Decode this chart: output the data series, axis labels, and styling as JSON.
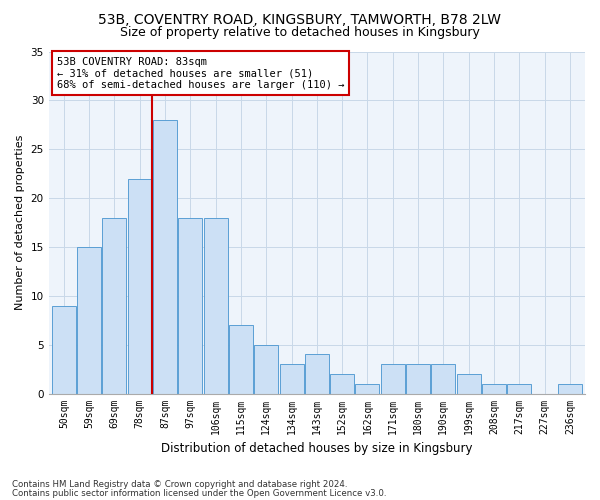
{
  "title1": "53B, COVENTRY ROAD, KINGSBURY, TAMWORTH, B78 2LW",
  "title2": "Size of property relative to detached houses in Kingsbury",
  "xlabel": "Distribution of detached houses by size in Kingsbury",
  "ylabel": "Number of detached properties",
  "categories": [
    "50sqm",
    "59sqm",
    "69sqm",
    "78sqm",
    "87sqm",
    "97sqm",
    "106sqm",
    "115sqm",
    "124sqm",
    "134sqm",
    "143sqm",
    "152sqm",
    "162sqm",
    "171sqm",
    "180sqm",
    "190sqm",
    "199sqm",
    "208sqm",
    "217sqm",
    "227sqm",
    "236sqm"
  ],
  "values": [
    9,
    15,
    18,
    22,
    28,
    18,
    18,
    7,
    5,
    3,
    4,
    2,
    1,
    3,
    3,
    3,
    2,
    1,
    1,
    0,
    1
  ],
  "bar_color": "#cce0f5",
  "bar_edge_color": "#5a9fd4",
  "vline_x": 3.5,
  "vline_color": "#cc0000",
  "annotation_text": "53B COVENTRY ROAD: 83sqm\n← 31% of detached houses are smaller (51)\n68% of semi-detached houses are larger (110) →",
  "annotation_box_color": "white",
  "annotation_box_edgecolor": "#cc0000",
  "ylim": [
    0,
    35
  ],
  "yticks": [
    0,
    5,
    10,
    15,
    20,
    25,
    30,
    35
  ],
  "grid_color": "#c8d8e8",
  "bg_color": "#eef4fb",
  "footer1": "Contains HM Land Registry data © Crown copyright and database right 2024.",
  "footer2": "Contains public sector information licensed under the Open Government Licence v3.0.",
  "title_fontsize": 10,
  "subtitle_fontsize": 9,
  "tick_fontsize": 7,
  "ylabel_fontsize": 8,
  "xlabel_fontsize": 8.5,
  "annot_fontsize": 7.5
}
